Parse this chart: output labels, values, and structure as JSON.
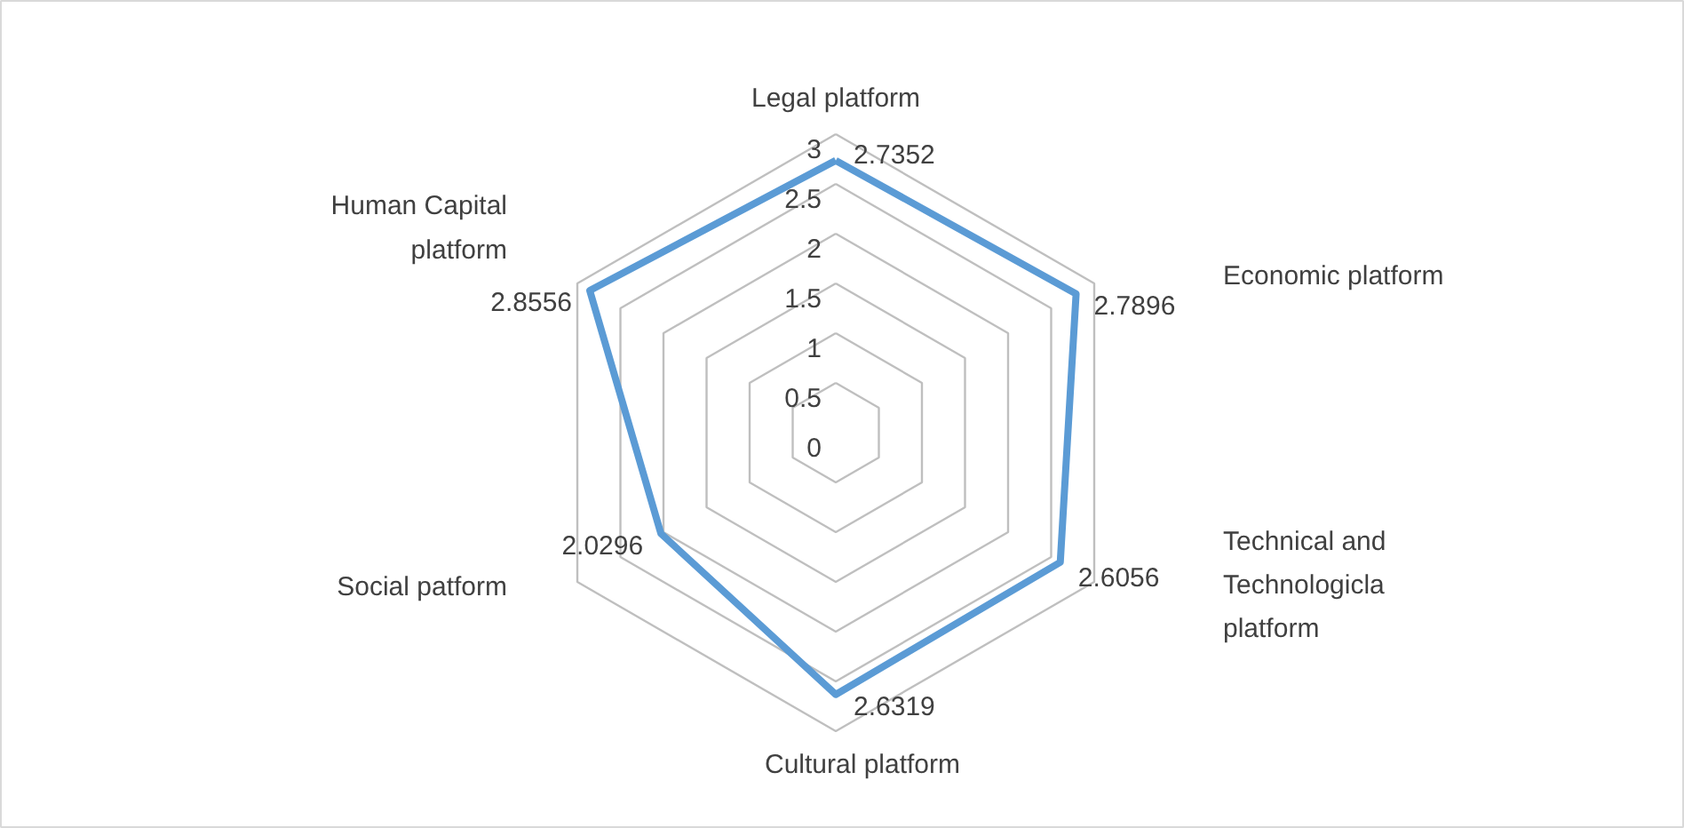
{
  "chart_data": {
    "type": "radar",
    "categories": [
      "Legal platform",
      "Economic platform",
      "Technical and Technologicla platform",
      "Cultural platform",
      "Social patform",
      "Human Capital platform"
    ],
    "series": [
      {
        "color": "#5b9bd5",
        "values": [
          2.7352,
          2.7896,
          2.6056,
          2.6319,
          2.0296,
          2.8556
        ]
      }
    ],
    "ylim": [
      0,
      3
    ],
    "yticks": [
      0,
      0.5,
      1,
      1.5,
      2,
      2.5,
      3
    ],
    "grid": true,
    "data_labels": true,
    "marker": "none",
    "line_style": "solid"
  }
}
